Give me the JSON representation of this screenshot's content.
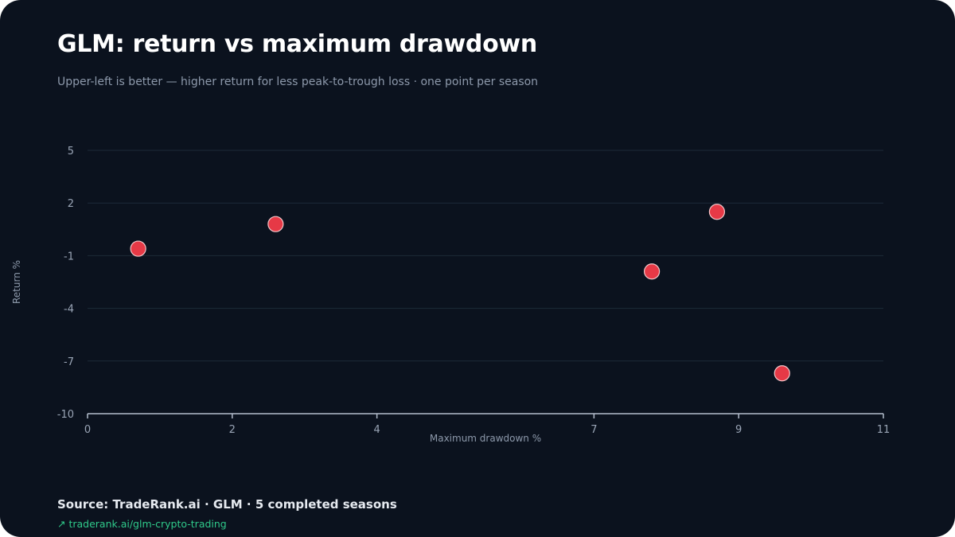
{
  "header": {
    "title": "GLM: return vs maximum drawdown",
    "subtitle": "Upper-left is better — higher return for less peak-to-trough loss · one point per season"
  },
  "footer": {
    "source": "Source: TradeRank.ai · GLM · 5 completed seasons",
    "link_text": "↗ traderank.ai/glm-crypto-trading"
  },
  "colors": {
    "background": "#0b121e",
    "point": "#e63946",
    "grid": "#1c2b38",
    "axis": "#b3bdcc"
  },
  "chart_data": {
    "type": "scatter",
    "title": "GLM: return vs maximum drawdown",
    "subtitle": "Upper-left is better — higher return for less peak-to-trough loss · one point per season",
    "xlabel": "Maximum drawdown %",
    "ylabel": "Return %",
    "xlim": [
      0,
      11
    ],
    "ylim": [
      -10,
      5
    ],
    "x_ticks": [
      0,
      2,
      4,
      7,
      9,
      11
    ],
    "x_tick_labels": [
      "0",
      "2",
      "4",
      "7",
      "9",
      "11"
    ],
    "y_ticks": [
      5,
      2,
      -1,
      -4,
      -7,
      -10
    ],
    "y_tick_labels": [
      "5",
      "2",
      "-1",
      "-4",
      "-7",
      "-10"
    ],
    "grid": true,
    "points": [
      {
        "x": 0.7,
        "y": -0.6
      },
      {
        "x": 2.6,
        "y": 0.8
      },
      {
        "x": 7.8,
        "y": -1.9
      },
      {
        "x": 8.7,
        "y": 1.5
      },
      {
        "x": 9.6,
        "y": -7.7
      }
    ]
  }
}
